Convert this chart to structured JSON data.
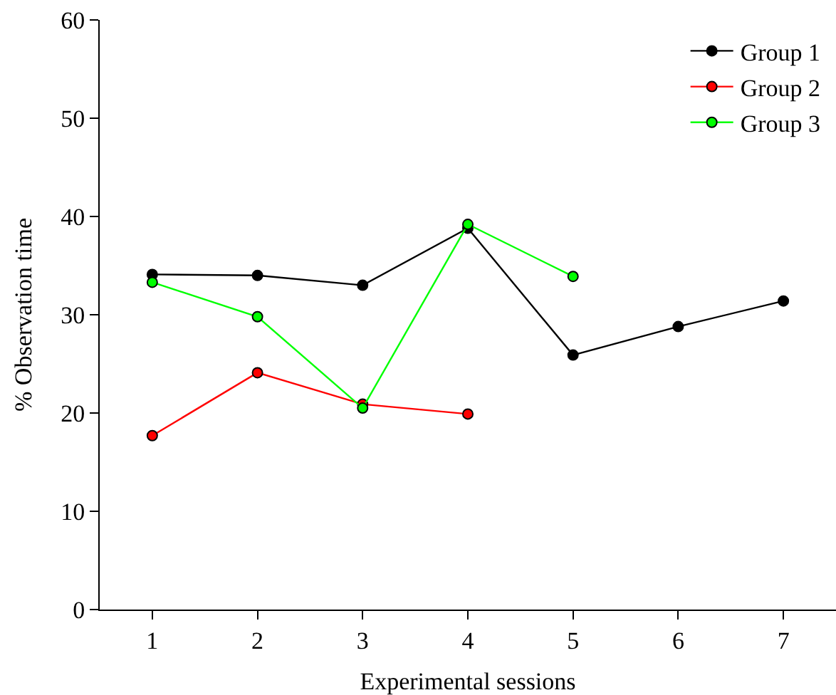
{
  "chart_data": {
    "type": "line",
    "xlabel": "Experimental sessions",
    "ylabel": "% Observation time",
    "xlim": [
      0.5,
      7.5
    ],
    "xticks": [
      1,
      2,
      3,
      4,
      5,
      6,
      7
    ],
    "ylim": [
      0,
      60
    ],
    "yticks": [
      0,
      10,
      20,
      30,
      40,
      50,
      60
    ],
    "legend": "top right",
    "marker": "circle",
    "line_style": "solid",
    "series": [
      {
        "name": "Group 1",
        "color": "#000000",
        "x": [
          1,
          2,
          3,
          4,
          5,
          6,
          7
        ],
        "values": [
          34.1,
          34.0,
          33.0,
          38.8,
          25.9,
          28.8,
          31.4
        ]
      },
      {
        "name": "Group 2",
        "color": "#ff0000",
        "x": [
          1,
          2,
          3,
          4
        ],
        "values": [
          17.7,
          24.1,
          20.9,
          19.9
        ]
      },
      {
        "name": "Group 3",
        "color": "#00ff00",
        "x": [
          1,
          2,
          3,
          4,
          5
        ],
        "values": [
          33.3,
          29.8,
          20.5,
          39.2,
          33.9
        ]
      }
    ]
  }
}
